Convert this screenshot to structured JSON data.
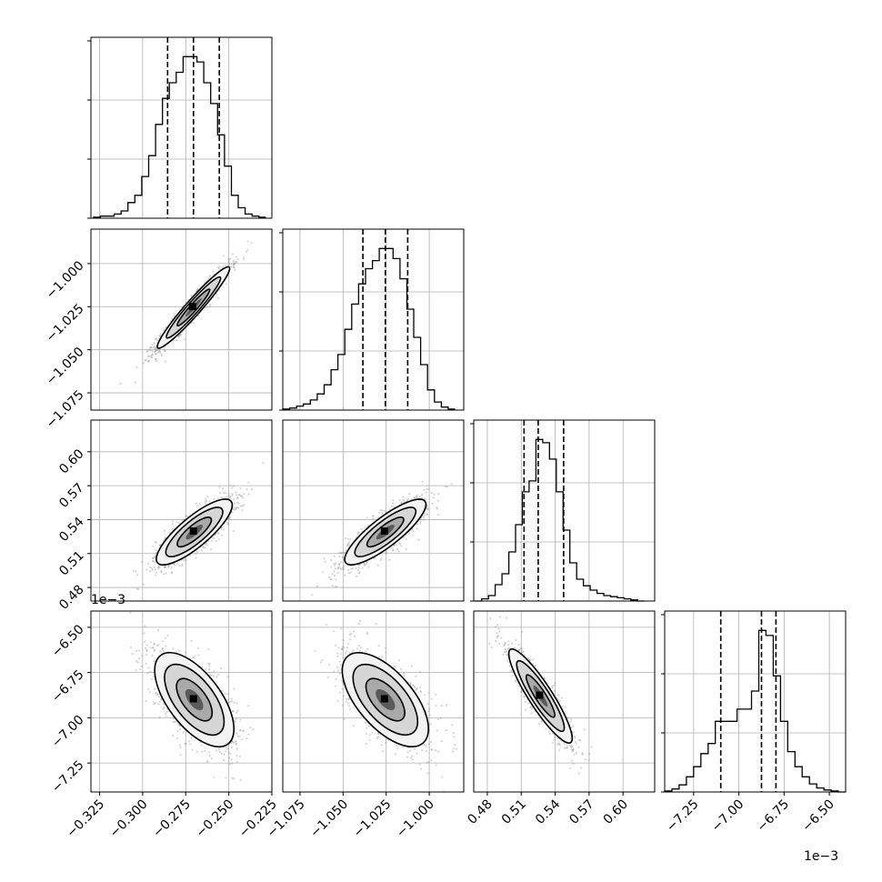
{
  "chart_data": {
    "type": "corner",
    "n_params": 4,
    "grid": true,
    "param_ranges": [
      [
        -0.33,
        -0.225
      ],
      [
        -1.085,
        -0.98
      ],
      [
        0.468,
        0.628
      ],
      [
        -7.41,
        -6.41
      ]
    ],
    "ticks": [
      [
        "−0.325",
        "−0.300",
        "−0.275",
        "−0.250",
        "−0.225"
      ],
      [
        "−1.075",
        "−1.050",
        "−1.025",
        "−1.000"
      ],
      [
        "0.48",
        "0.51",
        "0.54",
        "0.57",
        "0.60"
      ],
      [
        "−7.25",
        "−7.00",
        "−6.75",
        "−6.50"
      ]
    ],
    "tick_values": [
      [
        -0.325,
        -0.3,
        -0.275,
        -0.25,
        -0.225
      ],
      [
        -1.075,
        -1.05,
        -1.025,
        -1.0
      ],
      [
        0.48,
        0.51,
        0.54,
        0.57,
        0.6
      ],
      [
        -7.25,
        -7.0,
        -6.75,
        -6.5
      ]
    ],
    "offset_labels": {
      "y_param_3": "1e−3",
      "x_param_3": "1e−3"
    },
    "marginals": [
      {
        "quantiles": [
          -0.2855,
          -0.2705,
          -0.2555
        ],
        "bins_center": [
          -0.3265,
          -0.3225,
          -0.3185,
          -0.3145,
          -0.3105,
          -0.3065,
          -0.3025,
          -0.2985,
          -0.2945,
          -0.2905,
          -0.2865,
          -0.2825,
          -0.2785,
          -0.2745,
          -0.2705,
          -0.2665,
          -0.2625,
          -0.2585,
          -0.2545,
          -0.2505,
          -0.2465,
          -0.2425,
          -0.2385,
          -0.2345,
          -0.2305
        ],
        "counts": [
          1,
          2,
          2,
          4,
          7,
          15,
          22,
          40,
          60,
          90,
          115,
          130,
          140,
          155,
          155,
          150,
          130,
          110,
          80,
          50,
          22,
          10,
          4,
          2,
          1
        ]
      },
      {
        "quantiles": [
          -1.0385,
          -1.0255,
          -1.0125
        ],
        "bins_center": [
          -1.083,
          -1.079,
          -1.075,
          -1.071,
          -1.067,
          -1.063,
          -1.059,
          -1.055,
          -1.051,
          -1.047,
          -1.043,
          -1.039,
          -1.035,
          -1.031,
          -1.027,
          -1.023,
          -1.019,
          -1.015,
          -1.011,
          -1.007,
          -1.003,
          -0.999,
          -0.995,
          -0.991,
          -0.987
        ],
        "counts": [
          1,
          2,
          4,
          6,
          10,
          16,
          25,
          40,
          55,
          80,
          105,
          125,
          140,
          148,
          160,
          160,
          150,
          130,
          100,
          72,
          45,
          20,
          8,
          3,
          1
        ]
      },
      {
        "quantiles": [
          0.5125,
          0.525,
          0.5475
        ],
        "bins_center": [
          0.472,
          0.478,
          0.484,
          0.49,
          0.496,
          0.502,
          0.508,
          0.514,
          0.52,
          0.526,
          0.532,
          0.538,
          0.544,
          0.55,
          0.556,
          0.562,
          0.568,
          0.574,
          0.58,
          0.586,
          0.592,
          0.598,
          0.604,
          0.61,
          0.616
        ],
        "counts": [
          0,
          2,
          5,
          15,
          25,
          45,
          70,
          100,
          110,
          148,
          145,
          130,
          100,
          65,
          35,
          20,
          14,
          10,
          7,
          5,
          4,
          3,
          2,
          1,
          0
        ]
      },
      {
        "quantiles": [
          -7.1,
          -6.875,
          -6.795
        ],
        "bins_center": [
          -7.39,
          -7.35,
          -7.31,
          -7.27,
          -7.23,
          -7.19,
          -7.15,
          -7.11,
          -7.07,
          -7.03,
          -6.99,
          -6.95,
          -6.91,
          -6.87,
          -6.83,
          -6.79,
          -6.75,
          -6.71,
          -6.67,
          -6.63,
          -6.59,
          -6.55,
          -6.51,
          -6.47,
          -6.43
        ],
        "counts": [
          1,
          3,
          7,
          15,
          25,
          38,
          48,
          70,
          70,
          70,
          82,
          82,
          100,
          160,
          155,
          115,
          70,
          40,
          25,
          15,
          8,
          4,
          2,
          1,
          0
        ]
      }
    ],
    "pairs": [
      {
        "x": 0,
        "y": 1,
        "mean": [
          -0.2705,
          -1.0255
        ],
        "sd": [
          0.0105,
          0.0118
        ],
        "rho": 0.96
      },
      {
        "x": 0,
        "y": 2,
        "mean": [
          -0.27,
          0.529
        ],
        "sd": [
          0.011,
          0.0145
        ],
        "rho": 0.82
      },
      {
        "x": 1,
        "y": 2,
        "mean": [
          -1.0255,
          0.529
        ],
        "sd": [
          0.0118,
          0.0145
        ],
        "rho": 0.84
      },
      {
        "x": 0,
        "y": 3,
        "mean": [
          -0.27,
          -6.9
        ],
        "sd": [
          0.0115,
          0.13
        ],
        "rho": -0.62
      },
      {
        "x": 1,
        "y": 3,
        "mean": [
          -1.0255,
          -6.9
        ],
        "sd": [
          0.0125,
          0.13
        ],
        "rho": -0.62
      },
      {
        "x": 2,
        "y": 3,
        "mean": [
          0.527,
          -6.88
        ],
        "sd": [
          0.014,
          0.13
        ],
        "rho": -0.9
      }
    ],
    "contour_levels": [
      0.12,
      0.5,
      1.2
    ]
  }
}
